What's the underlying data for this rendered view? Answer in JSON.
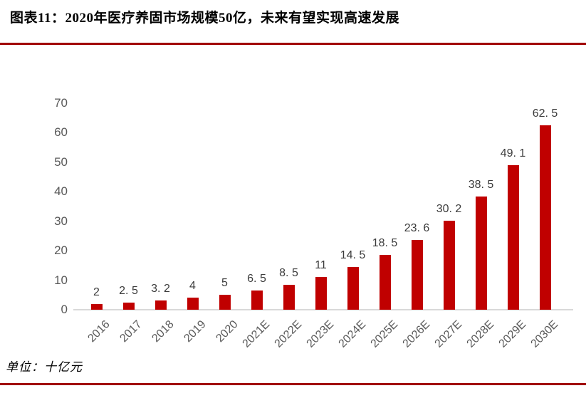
{
  "header": {
    "title": "图表11：2020年医疗养固市场规模50亿，未来有望实现高速发展"
  },
  "footer": {
    "unit_label": "单位：十亿元"
  },
  "colors": {
    "bar": "#C00000",
    "rule": "#A00000",
    "axis_line": "#D9D9D9",
    "tick_text": "#595959",
    "value_text": "#3b3b3b"
  },
  "chart_data": {
    "type": "bar",
    "title": "图表11：2020年医疗养固市场规模50亿，未来有望实现高速发展",
    "unit": "单位：十亿元",
    "categories": [
      "2016",
      "2017",
      "2018",
      "2019",
      "2020",
      "2021E",
      "2022E",
      "2023E",
      "2024E",
      "2025E",
      "2026E",
      "2027E",
      "2028E",
      "2029E",
      "2030E"
    ],
    "values": [
      2,
      2.5,
      3.2,
      4,
      5,
      6.5,
      8.5,
      11,
      14.5,
      18.5,
      23.6,
      30.2,
      38.5,
      49.1,
      62.5
    ],
    "value_labels": [
      "2",
      "2. 5",
      "3. 2",
      "4",
      "5",
      "6. 5",
      "8. 5",
      "11",
      "14. 5",
      "18. 5",
      "23. 6",
      "30. 2",
      "38. 5",
      "49. 1",
      "62. 5"
    ],
    "xlabel": "",
    "ylabel": "",
    "ylim": [
      0,
      70
    ],
    "yticks": [
      0,
      10,
      20,
      30,
      40,
      50,
      60,
      70
    ],
    "grid": false,
    "legend": "none"
  }
}
